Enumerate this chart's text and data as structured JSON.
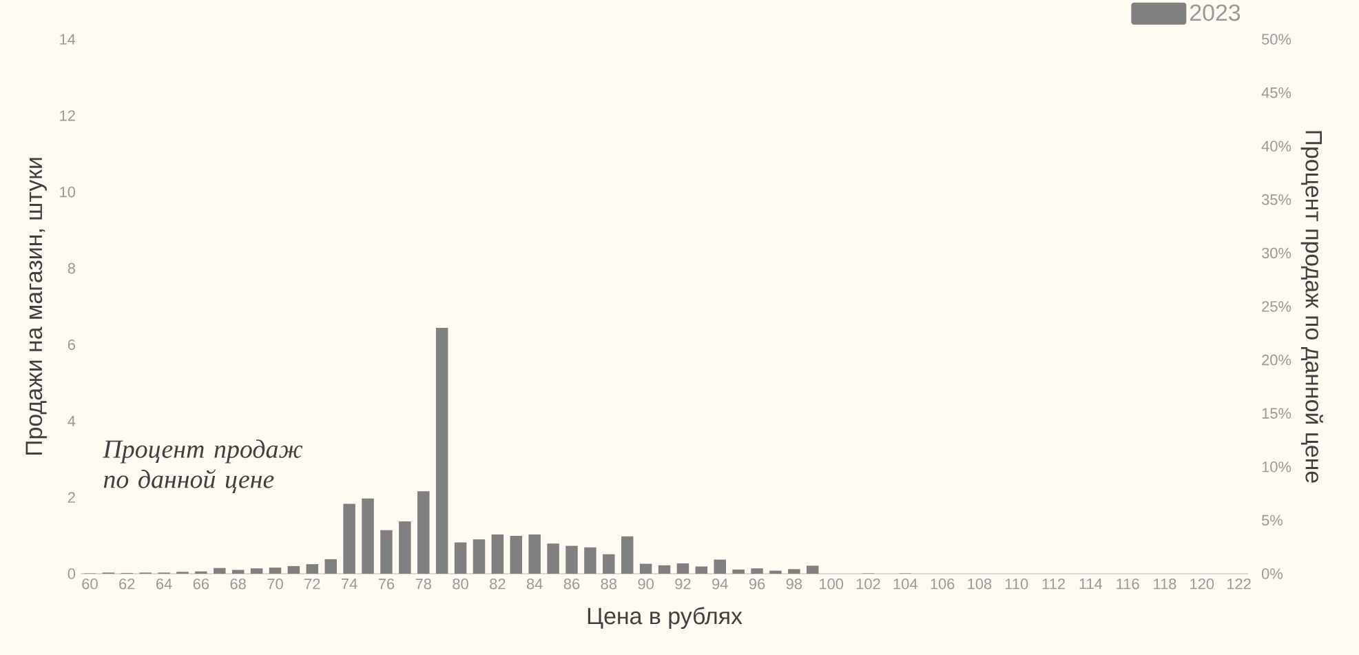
{
  "chart_data": {
    "type": "bar",
    "xlabel": "Цена в рублях",
    "ylabel": "Продажи на магазин, штуки",
    "y2label": "Процент продаж по данной цене",
    "annotations": [
      "Процент продаж по данной цене"
    ],
    "x": [
      60,
      61,
      62,
      63,
      64,
      65,
      66,
      67,
      68,
      69,
      70,
      71,
      72,
      73,
      74,
      75,
      76,
      77,
      78,
      79,
      80,
      81,
      82,
      83,
      84,
      85,
      86,
      87,
      88,
      89,
      90,
      91,
      92,
      93,
      94,
      95,
      96,
      97,
      98,
      99,
      100,
      101,
      102,
      103,
      104,
      105,
      106,
      107,
      108,
      109,
      110,
      111,
      112,
      113,
      114,
      115,
      116,
      117,
      118,
      119,
      120,
      121,
      122
    ],
    "series": [
      {
        "name": "2023",
        "color": "#808080",
        "values": [
          0.01,
          0.03,
          0.02,
          0.03,
          0.03,
          0.05,
          0.06,
          0.15,
          0.1,
          0.14,
          0.16,
          0.2,
          0.25,
          0.38,
          1.83,
          1.97,
          1.14,
          1.37,
          2.16,
          6.44,
          0.82,
          0.9,
          1.03,
          0.99,
          1.03,
          0.79,
          0.73,
          0.69,
          0.51,
          0.98,
          0.26,
          0.22,
          0.27,
          0.19,
          0.37,
          0.11,
          0.14,
          0.08,
          0.12,
          0.21,
          0,
          0,
          0.01,
          0,
          0.01,
          0,
          0,
          0,
          0,
          0,
          0,
          0,
          0,
          0,
          0,
          0,
          0,
          0,
          0,
          0,
          0,
          0,
          0
        ]
      }
    ],
    "xlim": [
      59.5,
      122.5
    ],
    "xticks": [
      60,
      62,
      64,
      66,
      68,
      70,
      72,
      74,
      76,
      78,
      80,
      82,
      84,
      86,
      88,
      90,
      92,
      94,
      96,
      98,
      100,
      102,
      104,
      106,
      108,
      110,
      112,
      114,
      116,
      118,
      120,
      122
    ],
    "ylim": [
      0,
      14
    ],
    "yticks": [
      0,
      2,
      4,
      6,
      8,
      10,
      12,
      14
    ],
    "y2lim": [
      0,
      50
    ],
    "y2ticks": [
      {
        "value": 0,
        "label": "0%"
      },
      {
        "value": 5,
        "label": "5%"
      },
      {
        "value": 10,
        "label": "10%"
      },
      {
        "value": 15,
        "label": "15%"
      },
      {
        "value": 20,
        "label": "20%"
      },
      {
        "value": 25,
        "label": "25%"
      },
      {
        "value": 30,
        "label": "30%"
      },
      {
        "value": 35,
        "label": "35%"
      },
      {
        "value": 40,
        "label": "40%"
      },
      {
        "value": 45,
        "label": "45%"
      },
      {
        "value": 50,
        "label": "50%"
      }
    ],
    "legend": "top right",
    "grid": false
  }
}
